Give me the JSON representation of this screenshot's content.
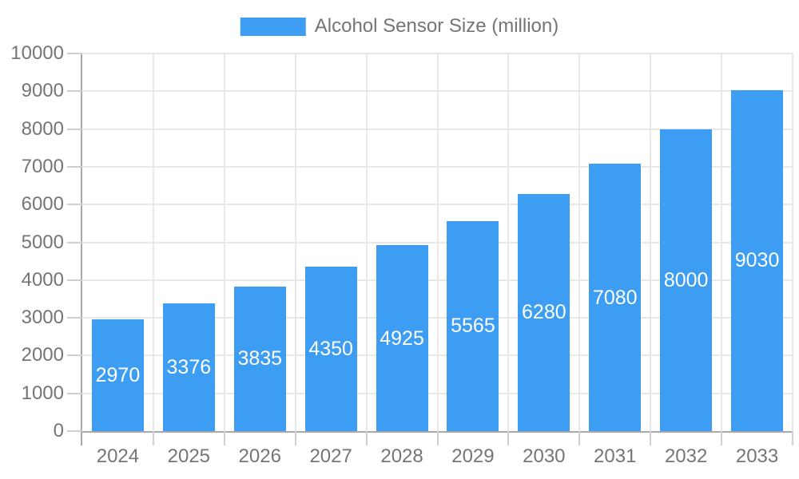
{
  "chart_data": {
    "type": "bar",
    "title": "",
    "legend": "Alcohol Sensor Size (million)",
    "legend_position": "top-center",
    "categories": [
      "2024",
      "2025",
      "2026",
      "2027",
      "2028",
      "2029",
      "2030",
      "2031",
      "2032",
      "2033"
    ],
    "series": [
      {
        "name": "Alcohol Sensor Size (million)",
        "values": [
          2970,
          3376,
          3835,
          4350,
          4925,
          5565,
          6280,
          7080,
          8000,
          9030
        ]
      }
    ],
    "xlabel": "",
    "ylabel": "",
    "ylim": [
      0,
      10000
    ],
    "ytick_step": 1000,
    "ytick_labels": [
      "0",
      "1000",
      "2000",
      "3000",
      "4000",
      "5000",
      "6000",
      "7000",
      "8000",
      "9000",
      "10000"
    ],
    "grid": true,
    "value_label_position": "inside-center",
    "colors": {
      "bar": "#3D9DF2",
      "bar_value_label": "#FFFFFF",
      "axis_text": "#757575",
      "grid_line": "#E8E8E8",
      "axis_line": "#A8A8A8",
      "tick_line": "#CFCFCF",
      "background": "#FFFFFF"
    }
  }
}
